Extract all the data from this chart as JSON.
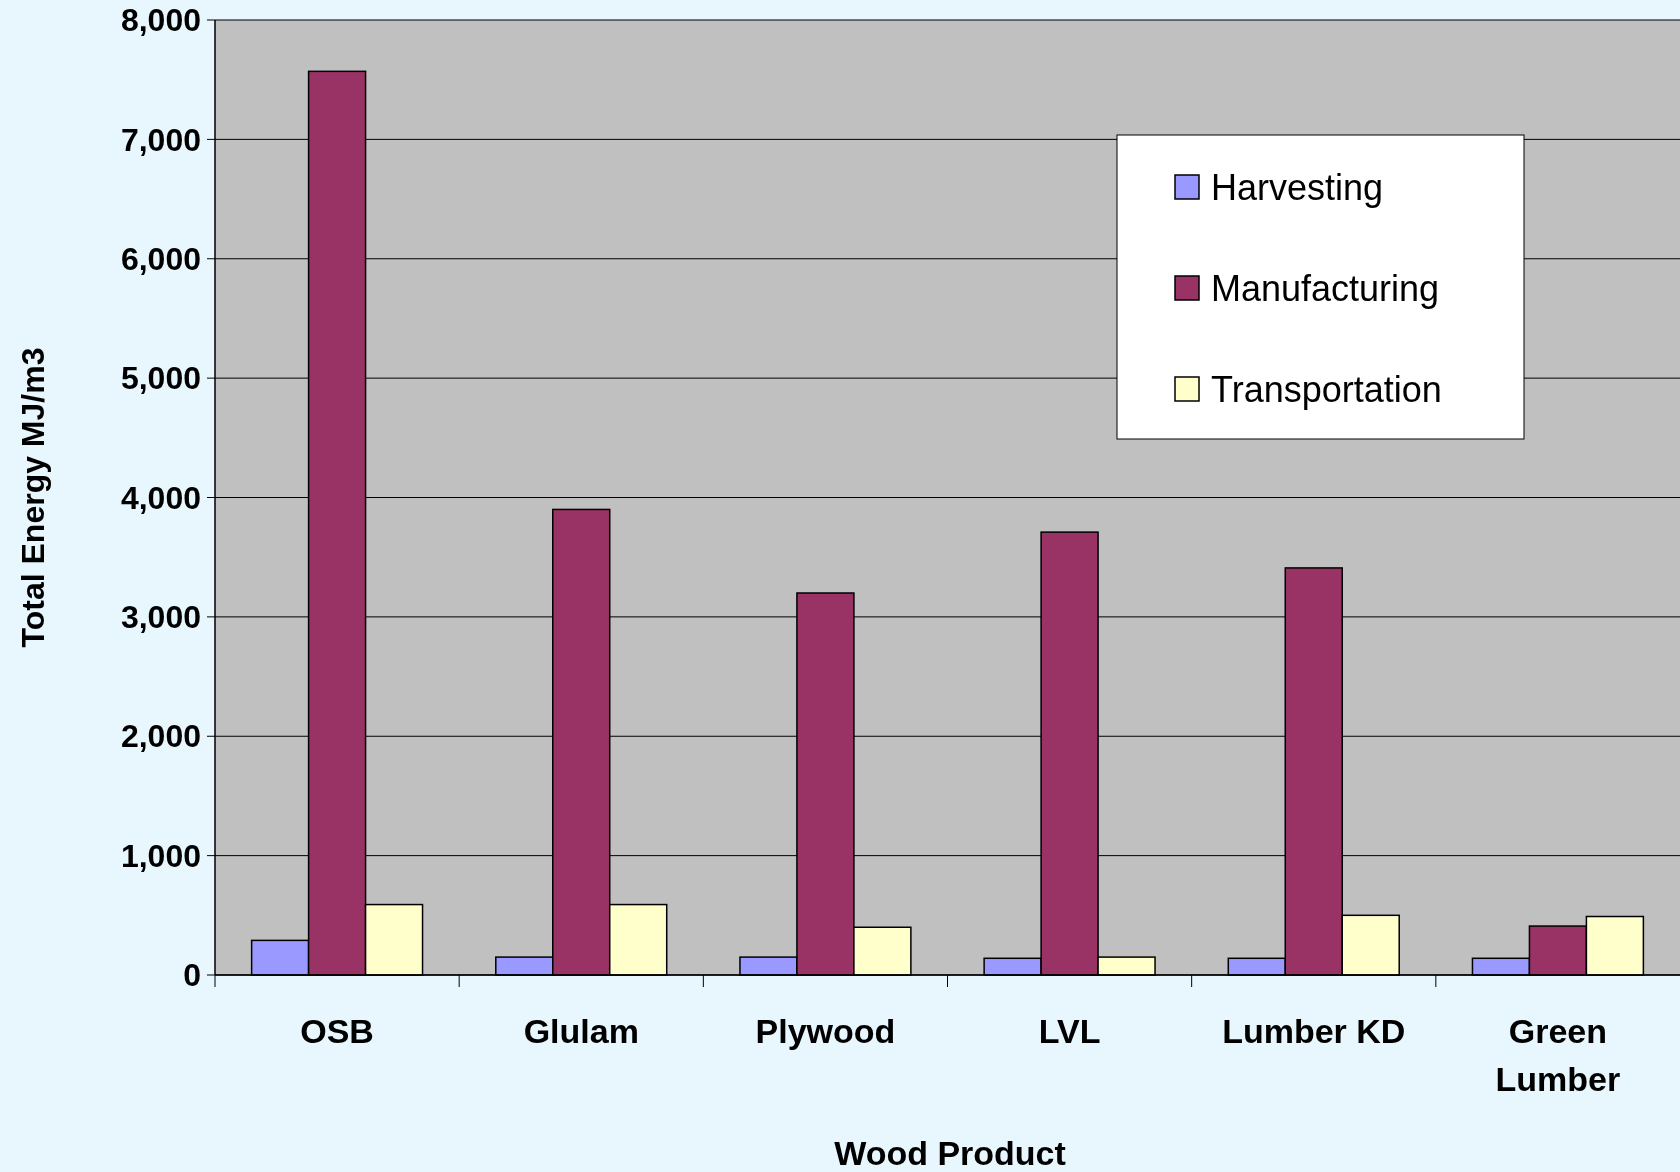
{
  "chart_data": {
    "type": "bar",
    "xlabel": "Wood Product",
    "ylabel": "Total Energy MJ/m3",
    "categories": [
      "OSB",
      "Glulam",
      "Plywood",
      "LVL",
      "Lumber KD",
      "Green Lumber"
    ],
    "series": [
      {
        "name": "Harvesting",
        "color": "#9999ff",
        "values": [
          290,
          150,
          150,
          140,
          140,
          140
        ]
      },
      {
        "name": "Manufacturing",
        "color": "#993366",
        "values": [
          7570,
          3900,
          3200,
          3710,
          3410,
          410
        ]
      },
      {
        "name": "Transportation",
        "color": "#ffffcc",
        "values": [
          590,
          590,
          400,
          150,
          500,
          490
        ]
      }
    ],
    "ylim": [
      0,
      8000
    ],
    "yticks": [
      {
        "value": 0,
        "label": "0"
      },
      {
        "value": 1000,
        "label": "1,000"
      },
      {
        "value": 2000,
        "label": "2,000"
      },
      {
        "value": 3000,
        "label": "3,000"
      },
      {
        "value": 4000,
        "label": "4,000"
      },
      {
        "value": 5000,
        "label": "5,000"
      },
      {
        "value": 6000,
        "label": "6,000"
      },
      {
        "value": 7000,
        "label": "7,000"
      },
      {
        "value": 8000,
        "label": "8,000"
      }
    ],
    "grid": "y",
    "legend": "top right"
  }
}
